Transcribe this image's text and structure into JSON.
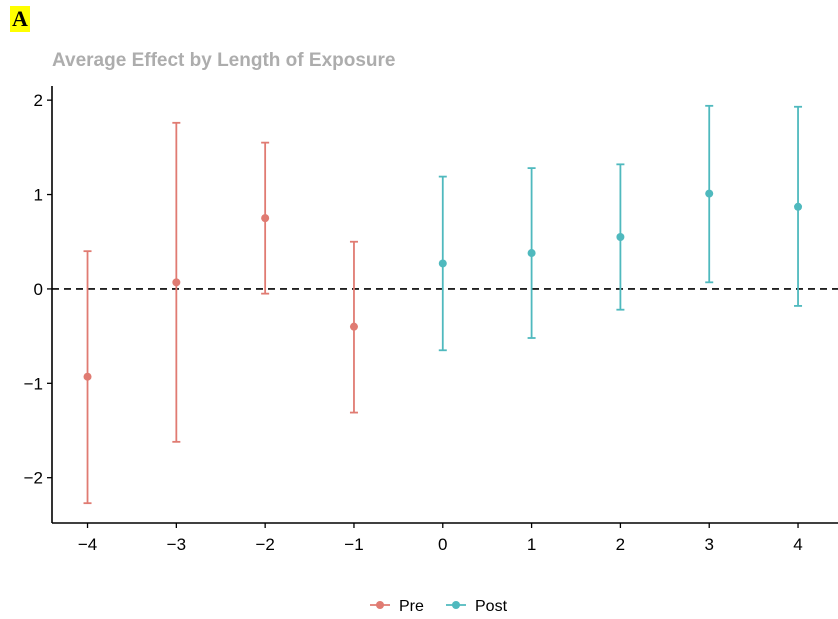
{
  "panel_label": "A",
  "chart_data": {
    "type": "scatter",
    "title": "Average Effect by Length of Exposure",
    "xlabel": "",
    "ylabel": "",
    "xlim": [
      -4.4,
      4.45
    ],
    "ylim": [
      -2.48,
      2.15
    ],
    "x_ticks": [
      -4,
      -3,
      -2,
      -1,
      0,
      1,
      2,
      3,
      4
    ],
    "x_tick_labels": [
      "−4",
      "−3",
      "−2",
      "−1",
      "0",
      "1",
      "2",
      "3",
      "4"
    ],
    "y_ticks": [
      -2,
      -1,
      0,
      1,
      2
    ],
    "y_tick_labels": [
      "−2",
      "−1",
      "0",
      "1",
      "2"
    ],
    "reference_line": {
      "y": 0,
      "style": "dashed"
    },
    "grid": false,
    "legend_position": "bottom",
    "series": [
      {
        "name": "Pre",
        "color": "#e07b72",
        "points": [
          {
            "x": -4,
            "y": -0.93,
            "lower": -2.27,
            "upper": 0.4
          },
          {
            "x": -3,
            "y": 0.07,
            "lower": -1.62,
            "upper": 1.76
          },
          {
            "x": -2,
            "y": 0.75,
            "lower": -0.05,
            "upper": 1.55
          },
          {
            "x": -1,
            "y": -0.4,
            "lower": -1.31,
            "upper": 0.5
          }
        ]
      },
      {
        "name": "Post",
        "color": "#4fb9be",
        "points": [
          {
            "x": 0,
            "y": 0.27,
            "lower": -0.65,
            "upper": 1.19
          },
          {
            "x": 1,
            "y": 0.38,
            "lower": -0.52,
            "upper": 1.28
          },
          {
            "x": 2,
            "y": 0.55,
            "lower": -0.22,
            "upper": 1.32
          },
          {
            "x": 3,
            "y": 1.01,
            "lower": 0.07,
            "upper": 1.94
          },
          {
            "x": 4,
            "y": 0.87,
            "lower": -0.18,
            "upper": 1.93
          }
        ]
      }
    ]
  }
}
